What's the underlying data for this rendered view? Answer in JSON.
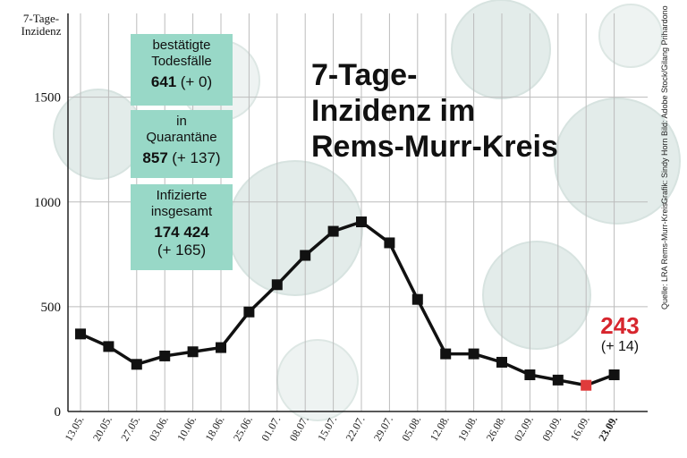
{
  "chart_data": {
    "type": "line",
    "title_lines": [
      "7-Tage-",
      "Inzidenz im",
      "Rems-Murr-Kreis"
    ],
    "ylabel": "7-Tage-Inzidenz",
    "xlabel": "",
    "ylim": [
      0,
      1900
    ],
    "yticks": [
      0,
      500,
      1000,
      1500
    ],
    "grid": true,
    "categories": [
      "13.05.",
      "20.05.",
      "27.05.",
      "03.06.",
      "10.06.",
      "18.06.",
      "25.06.",
      "01.07.",
      "08.07.",
      "15.07.",
      "22.07.",
      "29.07.",
      "05.08.",
      "12.08.",
      "19.08.",
      "26.08.",
      "02.09.",
      "09.09.",
      "16.09.",
      "23.09."
    ],
    "values": [
      370,
      310,
      225,
      265,
      285,
      305,
      475,
      605,
      745,
      860,
      905,
      805,
      535,
      275,
      275,
      235,
      175,
      150,
      125,
      175
    ],
    "highlight_category": "16.09.",
    "line_color": "#111111",
    "marker_color": "#111111",
    "highlight_color": "#e03b3b"
  },
  "latest": {
    "value": "243",
    "change": "(+ 14)"
  },
  "boxes": [
    {
      "label_lines": [
        "bestätigte",
        "Todesfälle"
      ],
      "value": "641",
      "change": "(+ 0)"
    },
    {
      "label_lines": [
        "in",
        "Quarantäne"
      ],
      "value": "857",
      "change": "(+ 137)"
    },
    {
      "label_lines": [
        "Infizierte",
        "insgesamt"
      ],
      "value": "174 424",
      "change": "(+ 165)"
    }
  ],
  "credits": {
    "photo": "Bild: Adobe Stock/Gilang Prihardono",
    "graphic": "Grafik: Sindy Horn",
    "source": "Quelle: LRA Rems-Murr-Kreis"
  },
  "colors": {
    "box_fill": "#98d8c7",
    "accent_red": "#d7262e",
    "background_virus": "#dfe9e7"
  }
}
